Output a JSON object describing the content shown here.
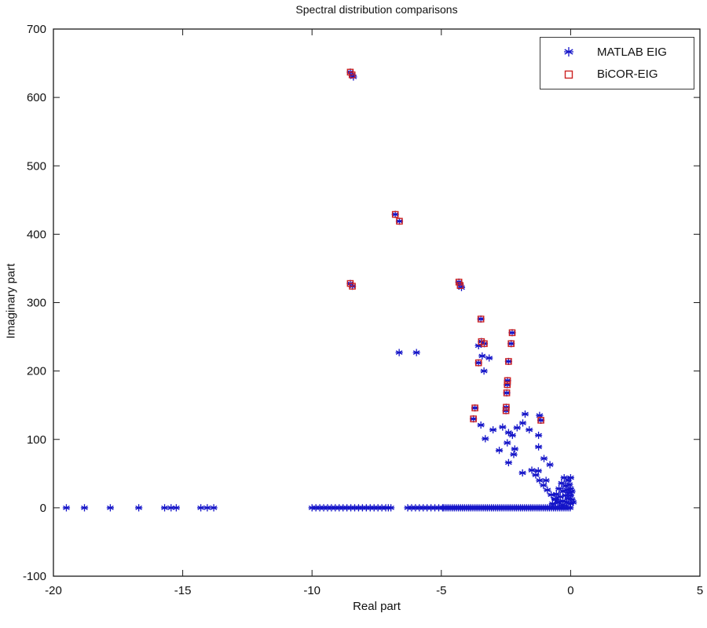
{
  "figure": {
    "title": "Spectral distribution comparisons",
    "xlabel": "Real part",
    "ylabel": "Imaginary part"
  },
  "colors": {
    "matlab_eig": "#1414c8",
    "bicor_eig": "#cc2222",
    "axis": "#1a1a1a",
    "background": "#ffffff"
  },
  "chart_data": {
    "type": "scatter",
    "title": "Spectral distribution comparisons",
    "xlabel": "Real part",
    "ylabel": "Imaginary part",
    "xlim": [
      -20,
      5
    ],
    "ylim": [
      -100,
      700
    ],
    "x_ticks": [
      -20,
      -15,
      -10,
      -5,
      0,
      5
    ],
    "y_ticks": [
      -100,
      0,
      100,
      200,
      300,
      400,
      500,
      600,
      700
    ],
    "grid": false,
    "legend_position": "top-right",
    "series": [
      {
        "name": "MATLAB EIG",
        "marker": "asterisk",
        "color": "#1414c8",
        "points": [
          [
            -19.5,
            0
          ],
          [
            -18.8,
            0
          ],
          [
            -17.8,
            0
          ],
          [
            -16.7,
            0
          ],
          [
            -15.7,
            0
          ],
          [
            -15.45,
            0
          ],
          [
            -15.25,
            0
          ],
          [
            -14.3,
            0
          ],
          [
            -14.05,
            0
          ],
          [
            -13.8,
            0
          ],
          [
            -10.0,
            0
          ],
          [
            -9.85,
            0
          ],
          [
            -9.7,
            0
          ],
          [
            -9.55,
            0
          ],
          [
            -9.4,
            0
          ],
          [
            -9.25,
            0
          ],
          [
            -9.1,
            0
          ],
          [
            -8.95,
            0
          ],
          [
            -8.8,
            0
          ],
          [
            -8.65,
            0
          ],
          [
            -8.5,
            0
          ],
          [
            -8.35,
            0
          ],
          [
            -8.2,
            0
          ],
          [
            -8.05,
            0
          ],
          [
            -7.9,
            0
          ],
          [
            -7.75,
            0
          ],
          [
            -7.6,
            0
          ],
          [
            -7.45,
            0
          ],
          [
            -7.3,
            0
          ],
          [
            -7.15,
            0
          ],
          [
            -7.05,
            0
          ],
          [
            -6.95,
            0
          ],
          [
            -6.3,
            0
          ],
          [
            -6.15,
            0
          ],
          [
            -6.0,
            0
          ],
          [
            -5.85,
            0
          ],
          [
            -5.7,
            0
          ],
          [
            -5.55,
            0
          ],
          [
            -5.4,
            0
          ],
          [
            -5.25,
            0
          ],
          [
            -5.1,
            0
          ],
          [
            -4.95,
            0
          ],
          [
            -4.9,
            0
          ],
          [
            -4.82,
            0
          ],
          [
            -4.74,
            0
          ],
          [
            -4.66,
            0
          ],
          [
            -4.58,
            0
          ],
          [
            -4.5,
            0
          ],
          [
            -4.42,
            0
          ],
          [
            -4.34,
            0
          ],
          [
            -4.26,
            0
          ],
          [
            -4.18,
            0
          ],
          [
            -4.1,
            0
          ],
          [
            -4.02,
            0
          ],
          [
            -3.94,
            0
          ],
          [
            -3.86,
            0
          ],
          [
            -3.78,
            0
          ],
          [
            -3.7,
            0
          ],
          [
            -3.62,
            0
          ],
          [
            -3.54,
            0
          ],
          [
            -3.46,
            0
          ],
          [
            -3.38,
            0
          ],
          [
            -3.3,
            0
          ],
          [
            -3.22,
            0
          ],
          [
            -3.14,
            0
          ],
          [
            -3.06,
            0
          ],
          [
            -2.98,
            0
          ],
          [
            -2.9,
            0
          ],
          [
            -2.82,
            0
          ],
          [
            -2.74,
            0
          ],
          [
            -2.66,
            0
          ],
          [
            -2.58,
            0
          ],
          [
            -2.5,
            0
          ],
          [
            -2.42,
            0
          ],
          [
            -2.34,
            0
          ],
          [
            -2.26,
            0
          ],
          [
            -2.18,
            0
          ],
          [
            -2.1,
            0
          ],
          [
            -2.02,
            0
          ],
          [
            -1.94,
            0
          ],
          [
            -1.86,
            0
          ],
          [
            -1.78,
            0
          ],
          [
            -1.7,
            0
          ],
          [
            -1.62,
            0
          ],
          [
            -1.54,
            0
          ],
          [
            -1.46,
            0
          ],
          [
            -1.38,
            0
          ],
          [
            -1.3,
            0
          ],
          [
            -1.22,
            0
          ],
          [
            -1.14,
            0
          ],
          [
            -1.06,
            0
          ],
          [
            -0.98,
            0
          ],
          [
            -0.9,
            0
          ],
          [
            -0.82,
            0
          ],
          [
            -0.74,
            0
          ],
          [
            -0.66,
            0
          ],
          [
            -0.58,
            0
          ],
          [
            -0.5,
            0
          ],
          [
            -0.42,
            0
          ],
          [
            -0.34,
            0
          ],
          [
            -0.26,
            0
          ],
          [
            -0.18,
            0
          ],
          [
            -0.1,
            0
          ],
          [
            -0.02,
            0
          ],
          [
            -0.7,
            6
          ],
          [
            -0.6,
            12
          ],
          [
            -0.55,
            20
          ],
          [
            -0.5,
            8
          ],
          [
            -0.45,
            28
          ],
          [
            -0.4,
            16
          ],
          [
            -0.35,
            36
          ],
          [
            -0.3,
            10
          ],
          [
            -0.3,
            24
          ],
          [
            -0.25,
            44
          ],
          [
            -0.2,
            18
          ],
          [
            -0.2,
            32
          ],
          [
            -0.15,
            8
          ],
          [
            -0.15,
            26
          ],
          [
            -0.1,
            40
          ],
          [
            -0.1,
            14
          ],
          [
            -0.05,
            22
          ],
          [
            -0.05,
            34
          ],
          [
            0,
            6
          ],
          [
            0,
            18
          ],
          [
            0,
            28
          ],
          [
            0,
            44
          ],
          [
            0.05,
            12
          ],
          [
            0.05,
            24
          ],
          [
            0.1,
            8
          ],
          [
            -3.47,
            121
          ],
          [
            -3.3,
            101
          ],
          [
            -3.0,
            114
          ],
          [
            -2.76,
            84
          ],
          [
            -2.63,
            118
          ],
          [
            -2.45,
            95
          ],
          [
            -2.4,
            110
          ],
          [
            -2.4,
            66
          ],
          [
            -2.25,
            106
          ],
          [
            -2.2,
            78
          ],
          [
            -2.16,
            86
          ],
          [
            -2.07,
            117
          ],
          [
            -1.86,
            51
          ],
          [
            -1.85,
            124
          ],
          [
            -1.76,
            137
          ],
          [
            -1.6,
            114
          ],
          [
            -1.5,
            55
          ],
          [
            -1.25,
            54
          ],
          [
            -1.24,
            106
          ],
          [
            -1.24,
            89
          ],
          [
            -1.03,
            72
          ],
          [
            -0.95,
            40
          ],
          [
            -0.8,
            63
          ],
          [
            -1.35,
            48
          ],
          [
            -1.2,
            40
          ],
          [
            -1.05,
            33
          ],
          [
            -0.9,
            26
          ],
          [
            -0.75,
            19
          ],
          [
            -0.6,
            13
          ],
          [
            -0.45,
            8
          ],
          [
            -0.3,
            4
          ],
          [
            -6.63,
            227
          ],
          [
            -5.96,
            227
          ],
          [
            -8.52,
            637
          ],
          [
            -8.45,
            633
          ],
          [
            -8.4,
            630
          ],
          [
            -6.78,
            429
          ],
          [
            -6.62,
            419
          ],
          [
            -8.52,
            328
          ],
          [
            -8.44,
            324
          ],
          [
            -4.32,
            330
          ],
          [
            -4.27,
            326
          ],
          [
            -4.22,
            322
          ],
          [
            -3.47,
            276
          ],
          [
            -3.45,
            243
          ],
          [
            -3.34,
            240
          ],
          [
            -3.56,
            237
          ],
          [
            -3.42,
            222
          ],
          [
            -3.15,
            219
          ],
          [
            -3.56,
            212
          ],
          [
            -3.35,
            200
          ],
          [
            -2.26,
            256
          ],
          [
            -2.3,
            240
          ],
          [
            -2.4,
            214
          ],
          [
            -2.44,
            186
          ],
          [
            -2.45,
            180
          ],
          [
            -2.47,
            168
          ],
          [
            -2.49,
            147
          ],
          [
            -2.5,
            142
          ],
          [
            -3.7,
            146
          ],
          [
            -3.76,
            130
          ],
          [
            -1.15,
            128
          ],
          [
            -1.2,
            135
          ]
        ]
      },
      {
        "name": "BiCOR-EIG",
        "marker": "square",
        "color": "#cc2222",
        "points": [
          [
            -8.52,
            637
          ],
          [
            -8.45,
            633
          ],
          [
            -6.78,
            429
          ],
          [
            -6.62,
            419
          ],
          [
            -8.52,
            328
          ],
          [
            -8.44,
            324
          ],
          [
            -4.32,
            330
          ],
          [
            -4.27,
            325
          ],
          [
            -3.47,
            276
          ],
          [
            -3.45,
            243
          ],
          [
            -3.34,
            240
          ],
          [
            -3.56,
            212
          ],
          [
            -2.26,
            256
          ],
          [
            -2.3,
            240
          ],
          [
            -2.4,
            214
          ],
          [
            -2.44,
            186
          ],
          [
            -2.45,
            180
          ],
          [
            -2.47,
            168
          ],
          [
            -2.49,
            147
          ],
          [
            -2.5,
            142
          ],
          [
            -3.7,
            146
          ],
          [
            -3.76,
            130
          ],
          [
            -1.15,
            128
          ]
        ]
      }
    ]
  }
}
